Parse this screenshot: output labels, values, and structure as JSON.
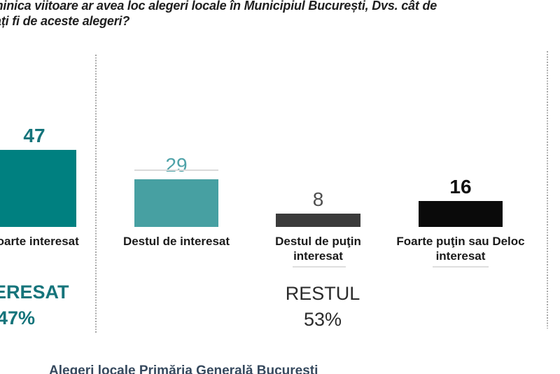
{
  "title": {
    "line1": "Dacă duminica viitoare ar avea loc alegeri locale în Municipiul București, Dvs. cât de",
    "line2": "interesat ați fi de aceste alegeri?"
  },
  "chart_data": {
    "type": "bar",
    "title": "Dacă duminica viitoare ar avea loc alegeri locale în Municipiul București, Dvs. cât de interesat ați fi de aceste alegeri?",
    "categories": [
      "Foarte interesat",
      "Destul de interesat",
      "Destul de puţin interesat",
      "Foarte puţin sau Deloc interesat"
    ],
    "values": [
      47,
      29,
      8,
      16
    ],
    "unit": "%",
    "ylim": [
      0,
      50
    ],
    "grid": false,
    "legend": "none",
    "bar_colors": [
      "#008080",
      "#47A0A2",
      "#3B3B3B",
      "#0A0A0A"
    ],
    "value_label_colors": [
      "#15747B",
      "#4EA2A8",
      "#4F4F4F",
      "#111111"
    ],
    "value_label_bold": [
      true,
      false,
      false,
      true
    ],
    "groups": [
      {
        "label": "INTERESAT",
        "value": "47%",
        "members": [
          "Foarte interesat"
        ]
      },
      {
        "label": "RESTUL",
        "value": "53%",
        "members": [
          "Destul de interesat",
          "Destul de puţin interesat",
          "Foarte puţin sau Deloc interesat"
        ]
      }
    ]
  },
  "footer": {
    "text": "Alegeri locale Primăria Generală București"
  },
  "style": {
    "teal_dark": "#008080",
    "teal_light": "#47A0A2",
    "gray_dark": "#3B3B3B",
    "black": "#0A0A0A",
    "divider_dots": "#A6A6A6",
    "summary_teal": "#15747B"
  }
}
